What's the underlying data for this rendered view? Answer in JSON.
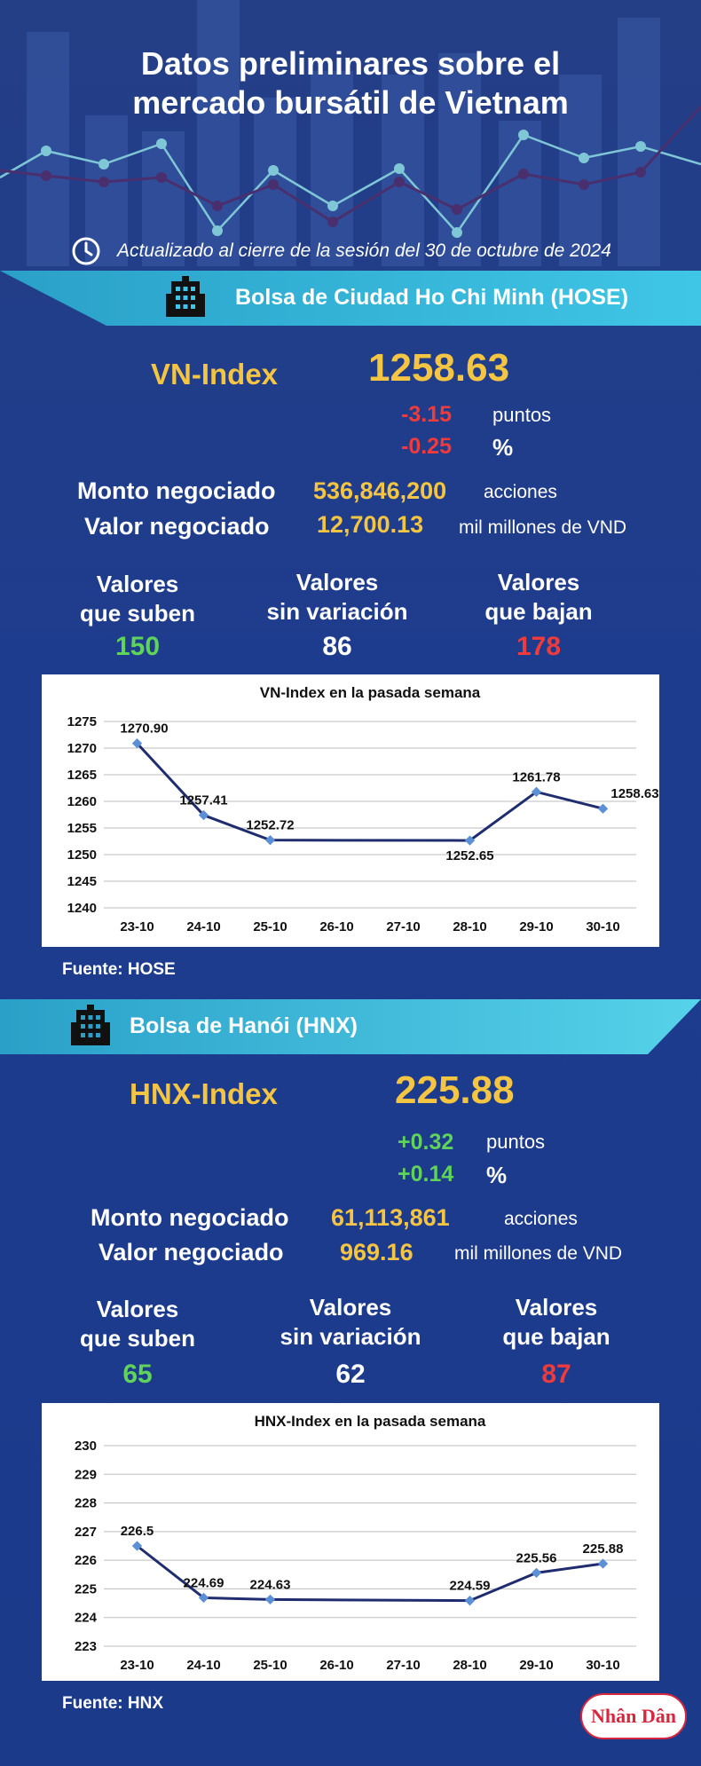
{
  "header": {
    "title_line1": "Datos preliminares sobre el",
    "title_line2": "mercado bursátil de Vietnam",
    "updated": "Actualizado al cierre de la sesión del 30 de octubre de 2024"
  },
  "hose": {
    "banner": "Bolsa de Ciudad Ho Chi Minh (HOSE)",
    "index_name": "VN-Index",
    "index_value": "1258.63",
    "change_points": "-3.15",
    "change_points_unit": "puntos",
    "change_pct": "-0.25",
    "change_pct_unit": "%",
    "volume_label": "Monto negociado",
    "volume_value": "536,846,200",
    "volume_unit": "acciones",
    "turnover_label": "Valor negociado",
    "turnover_value": "12,700.13",
    "turnover_unit": "mil millones de VND",
    "up_label_1": "Valores",
    "up_label_2": "que suben",
    "up_count": "150",
    "flat_label_1": "Valores",
    "flat_label_2": "sin variación",
    "flat_count": "86",
    "down_label_1": "Valores",
    "down_label_2": "que bajan",
    "down_count": "178",
    "source": "Fuente: HOSE",
    "status_colors": {
      "up": "#5fd35a",
      "flat": "#ffffff",
      "down": "#ef3b3b"
    }
  },
  "hnx": {
    "banner": "Bolsa de Hanói (HNX)",
    "index_name": "HNX-Index",
    "index_value": "225.88",
    "change_points": "+0.32",
    "change_points_unit": "puntos",
    "change_pct": "+0.14",
    "change_pct_unit": "%",
    "volume_label": "Monto negociado",
    "volume_value": "61,113,861",
    "volume_unit": "acciones",
    "turnover_label": "Valor negociado",
    "turnover_value": "969.16",
    "turnover_unit": "mil millones de VND",
    "up_label_1": "Valores",
    "up_label_2": "que suben",
    "up_count": "65",
    "flat_label_1": "Valores",
    "flat_label_2": "sin variación",
    "flat_count": "62",
    "down_label_1": "Valores",
    "down_label_2": "que bajan",
    "down_count": "87",
    "source": "Fuente:  HNX"
  },
  "chart_data": [
    {
      "type": "line",
      "title": "VN-Index en la pasada semana",
      "categories": [
        "23-10",
        "24-10",
        "25-10",
        "26-10",
        "27-10",
        "28-10",
        "29-10",
        "30-10"
      ],
      "x_index": [
        0,
        1,
        2,
        5,
        6,
        7
      ],
      "values": [
        1270.9,
        1257.41,
        1252.72,
        1252.65,
        1261.78,
        1258.63
      ],
      "labels": [
        "1270.90",
        "1257.41",
        "1252.72",
        "1252.65",
        "1261.78",
        "1258.63"
      ],
      "yticks": [
        "1275",
        "1270",
        "1265",
        "1260",
        "1255",
        "1250",
        "1245",
        "1240"
      ],
      "ylim": [
        1240,
        1275
      ],
      "grid": true,
      "line_color": "#1f2d6e"
    },
    {
      "type": "line",
      "title": "HNX-Index en la pasada semana",
      "categories": [
        "23-10",
        "24-10",
        "25-10",
        "26-10",
        "27-10",
        "28-10",
        "29-10",
        "30-10"
      ],
      "x_index": [
        0,
        1,
        2,
        5,
        6,
        7
      ],
      "values": [
        226.5,
        224.69,
        224.63,
        224.59,
        225.56,
        225.88
      ],
      "labels": [
        "226.5",
        "224.69",
        "224.63",
        "224.59",
        "225.56",
        "225.88"
      ],
      "yticks": [
        "230",
        "229",
        "228",
        "227",
        "226",
        "225",
        "224",
        "223"
      ],
      "ylim": [
        223,
        230
      ],
      "grid": true,
      "line_color": "#1f2d6e"
    }
  ],
  "logo": {
    "text": "Nhân Dân",
    "color": "#d7263d"
  },
  "icons": {
    "clock": "clock-icon",
    "building": "building-icon"
  }
}
